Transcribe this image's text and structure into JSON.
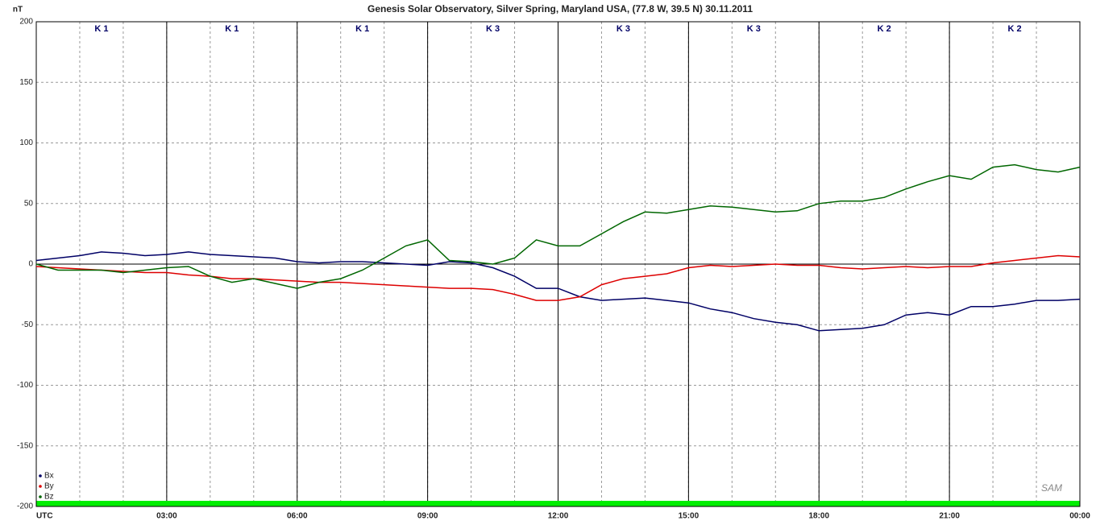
{
  "chart_data": {
    "type": "line",
    "title": "Genesis Solar Observatory, Silver Spring, Maryland USA, (77.8 W, 39.5 N)  30.11.2011",
    "y_label": "nT",
    "k_indices": [
      "K 1",
      "K 1",
      "K 1",
      "K 3",
      "K 3",
      "K 3",
      "K 2",
      "K 2"
    ],
    "logo": "SAM",
    "x": [
      0,
      0.5,
      1,
      1.5,
      2,
      2.5,
      3,
      3.5,
      4,
      4.5,
      5,
      5.5,
      6,
      6.5,
      7,
      7.5,
      8,
      8.5,
      9,
      9.5,
      10,
      10.5,
      11,
      11.5,
      12,
      12.5,
      13,
      13.5,
      14,
      14.5,
      15,
      15.5,
      16,
      16.5,
      17,
      17.5,
      18,
      18.5,
      19,
      19.5,
      20,
      20.5,
      21,
      21.5,
      22,
      22.5,
      23,
      23.5,
      24
    ],
    "series": [
      {
        "name": "Bx",
        "color": "#000066",
        "values": [
          3,
          5,
          7,
          10,
          9,
          7,
          8,
          10,
          8,
          7,
          6,
          5,
          2,
          1,
          2,
          2,
          1,
          0,
          -1,
          2,
          1,
          -3,
          -10,
          -20,
          -20,
          -27,
          -30,
          -29,
          -28,
          -30,
          -32,
          -37,
          -40,
          -45,
          -48,
          -50,
          -55,
          -54,
          -53,
          -50,
          -42,
          -40,
          -42,
          -35,
          -35,
          -33,
          -30,
          -30,
          -29
        ]
      },
      {
        "name": "By",
        "color": "#dd0000",
        "values": [
          -2,
          -3,
          -4,
          -5,
          -6,
          -7,
          -7,
          -9,
          -10,
          -12,
          -12,
          -13,
          -14,
          -15,
          -15,
          -16,
          -17,
          -18,
          -19,
          -20,
          -20,
          -21,
          -25,
          -30,
          -30,
          -27,
          -17,
          -12,
          -10,
          -8,
          -3,
          -1,
          -2,
          -1,
          0,
          -1,
          -1,
          -3,
          -4,
          -3,
          -2,
          -3,
          -2,
          -2,
          1,
          3,
          5,
          7,
          6
        ]
      },
      {
        "name": "Bz",
        "color": "#006600",
        "values": [
          0,
          -5,
          -5,
          -5,
          -7,
          -5,
          -3,
          -2,
          -10,
          -15,
          -12,
          -16,
          -20,
          -15,
          -12,
          -5,
          5,
          15,
          20,
          3,
          2,
          0,
          5,
          20,
          15,
          15,
          25,
          35,
          43,
          42,
          45,
          48,
          47,
          45,
          43,
          44,
          50,
          52,
          52,
          55,
          62,
          68,
          73,
          70,
          80,
          82,
          78,
          76,
          80
        ]
      }
    ],
    "xlim": [
      0,
      24
    ],
    "xticks": [
      {
        "value": 0,
        "label": "UTC"
      },
      {
        "value": 3,
        "label": "03:00"
      },
      {
        "value": 6,
        "label": "06:00"
      },
      {
        "value": 9,
        "label": "09:00"
      },
      {
        "value": 12,
        "label": "12:00"
      },
      {
        "value": 15,
        "label": "15:00"
      },
      {
        "value": 18,
        "label": "18:00"
      },
      {
        "value": 21,
        "label": "21:00"
      },
      {
        "value": 24,
        "label": "00:00"
      }
    ],
    "ylim": [
      -200,
      200
    ],
    "yticks": [
      -200,
      -150,
      -100,
      -50,
      0,
      50,
      100,
      150,
      200
    ],
    "grid": true,
    "legend": "bottom-left"
  }
}
